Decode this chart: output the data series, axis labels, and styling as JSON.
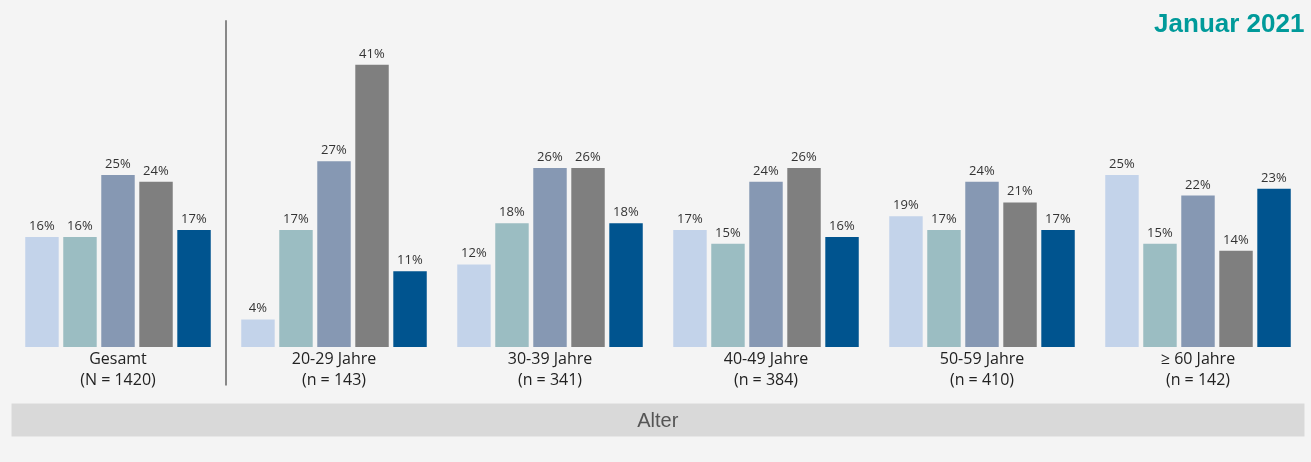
{
  "chart_data": {
    "type": "bar",
    "title": "Januar 2021",
    "xlabel": "Alter",
    "categories": [
      "Gesamt\n(N = 1420)",
      "20-29 Jahre\n(n = 143)",
      "30-39 Jahre\n(n = 341)",
      "40-49 Jahre\n(n = 384)",
      "50-59 Jahre\n(n = 410)",
      "≥ 60 Jahre\n(n = 142)"
    ],
    "series": [
      {
        "color": "#c3d3ea",
        "values": [
          16,
          4,
          12,
          17,
          19,
          25
        ],
        "value_labels": [
          "16%",
          "4%",
          "12%",
          "17%",
          "19%",
          "25%"
        ]
      },
      {
        "color": "#9bbdc2",
        "values": [
          16,
          17,
          18,
          15,
          17,
          15
        ],
        "value_labels": [
          "16%",
          "17%",
          "18%",
          "15%",
          "17%",
          "15%"
        ]
      },
      {
        "color": "#8698b3",
        "values": [
          25,
          27,
          26,
          24,
          24,
          22
        ],
        "value_labels": [
          "25%",
          "27%",
          "26%",
          "24%",
          "24%",
          "22%"
        ]
      },
      {
        "color": "#7f7f7f",
        "values": [
          24,
          41,
          26,
          26,
          21,
          14
        ],
        "value_labels": [
          "24%",
          "41%",
          "26%",
          "26%",
          "21%",
          "14%"
        ]
      },
      {
        "color": "#00548f",
        "values": [
          17,
          11,
          18,
          16,
          17,
          23
        ],
        "value_labels": [
          "17%",
          "11%",
          "18%",
          "16%",
          "17%",
          "23%"
        ]
      }
    ],
    "grid": false
  }
}
